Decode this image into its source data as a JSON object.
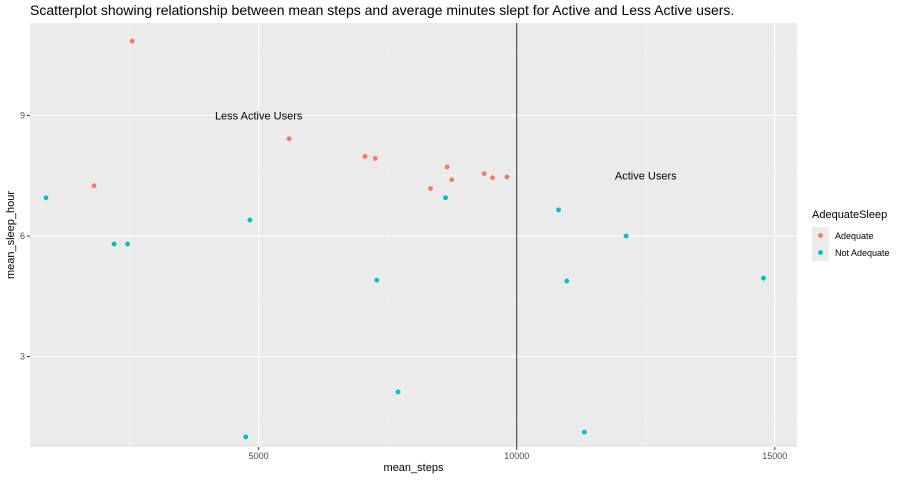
{
  "chart_data": {
    "type": "scatter",
    "title": "Scatterplot showing relationship between mean steps and average minutes slept for Active and Less Active users.",
    "xlabel": "mean_steps",
    "ylabel": "mean_sleep_hour",
    "xlim": [
      570,
      15430
    ],
    "ylim": [
      0.75,
      11.3
    ],
    "x_ticks": [
      5000,
      10000,
      15000
    ],
    "y_ticks": [
      3,
      6,
      9
    ],
    "x_tick_labels": [
      "5000",
      "10000",
      "15000"
    ],
    "y_tick_labels": [
      "3",
      "6",
      "9"
    ],
    "grid": true,
    "vline": 10000,
    "legend": {
      "title": "AdequateSleep",
      "position": "right",
      "entries": [
        {
          "label": "Adequate",
          "color": "#F8766D"
        },
        {
          "label": "Not Adequate",
          "color": "#00BFC4"
        }
      ]
    },
    "annotations": [
      {
        "text": "Less Active Users",
        "x": 5000,
        "y": 9.0
      },
      {
        "text": "Active Users",
        "x": 12500,
        "y": 7.5
      }
    ],
    "series": [
      {
        "name": "Adequate",
        "color": "#F8766D",
        "points": [
          [
            2550,
            10.85
          ],
          [
            1810,
            7.25
          ],
          [
            5590,
            8.42
          ],
          [
            7060,
            7.98
          ],
          [
            7260,
            7.93
          ],
          [
            8330,
            7.18
          ],
          [
            8650,
            7.72
          ],
          [
            8740,
            7.4
          ],
          [
            9370,
            7.55
          ],
          [
            9530,
            7.45
          ],
          [
            9810,
            7.47
          ]
        ]
      },
      {
        "name": "Not Adequate",
        "color": "#00BFC4",
        "points": [
          [
            880,
            6.95
          ],
          [
            2200,
            5.8
          ],
          [
            2460,
            5.8
          ],
          [
            4830,
            6.4
          ],
          [
            7290,
            4.9
          ],
          [
            8620,
            6.95
          ],
          [
            7700,
            2.12
          ],
          [
            4750,
            1.0
          ],
          [
            10810,
            6.65
          ],
          [
            10970,
            4.88
          ],
          [
            12120,
            6.0
          ],
          [
            14780,
            4.95
          ],
          [
            11310,
            1.12
          ]
        ]
      }
    ]
  },
  "colors": {
    "panel": "#EBEBEB",
    "grid_major": "#FFFFFF",
    "grid_minor": "#F3F3F3",
    "vline": "#404040"
  }
}
